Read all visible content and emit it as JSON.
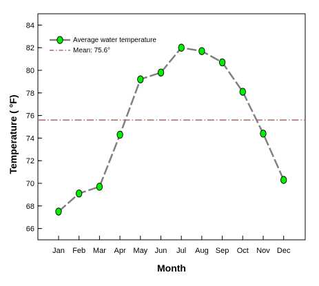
{
  "chart_data": {
    "type": "line",
    "title": "",
    "xlabel": "Month",
    "ylabel": "Temperature (  °F)",
    "categories": [
      "Jan",
      "Feb",
      "Mar",
      "Apr",
      "May",
      "Jun",
      "Jul",
      "Aug",
      "Sep",
      "Oct",
      "Nov",
      "Dec"
    ],
    "series": [
      {
        "name": "Average water temperature",
        "values": [
          67.5,
          69.1,
          69.7,
          74.3,
          79.2,
          79.8,
          82.0,
          81.7,
          80.7,
          78.1,
          74.4,
          70.3
        ],
        "color": "#808080",
        "marker_color": "#00ee00",
        "line_style": "dashed"
      }
    ],
    "reference_line": {
      "name": "Mean: 75.6°",
      "value": 75.6,
      "color": "#8b1a1a",
      "line_style": "dashed"
    },
    "ylim": [
      65,
      85
    ],
    "yticks": [
      66,
      68,
      70,
      72,
      74,
      76,
      78,
      80,
      82,
      84
    ],
    "grid": false,
    "legend_position": "top-left"
  }
}
